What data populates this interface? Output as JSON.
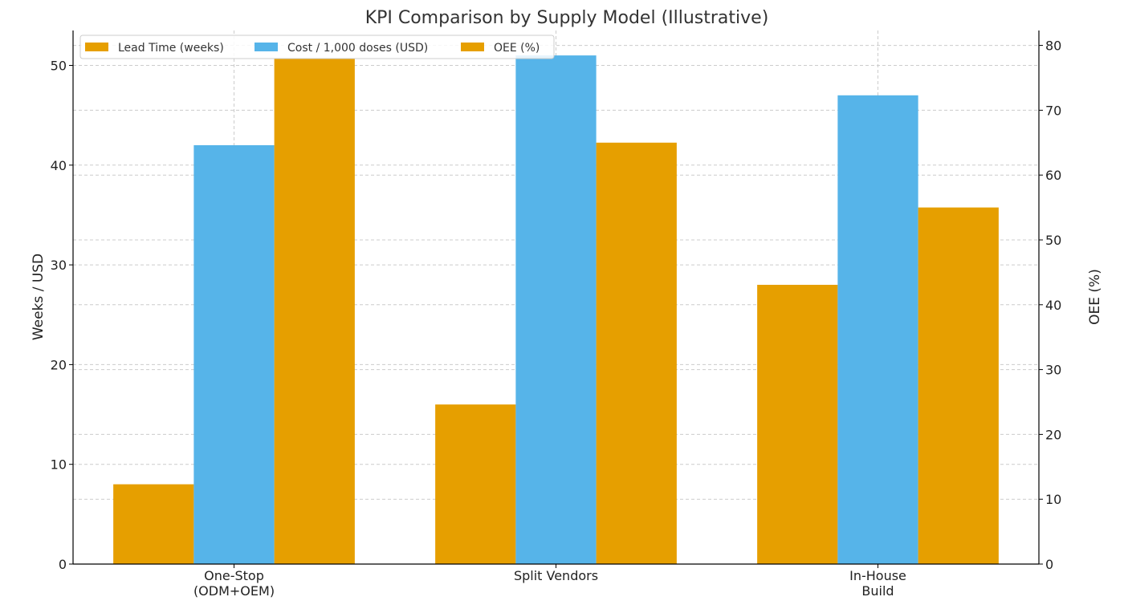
{
  "chart_data": {
    "type": "bar",
    "title": "KPI Comparison by Supply Model (Illustrative)",
    "categories": [
      [
        "One-Stop",
        "(ODM+OEM)"
      ],
      [
        "Split Vendors"
      ],
      [
        "In-House",
        "Build"
      ]
    ],
    "ylabel": "Weeks / USD",
    "y2label": "OEE (%)",
    "ylim": [
      0,
      53.5
    ],
    "y2lim": [
      0,
      82.3
    ],
    "yticks": [
      0,
      10,
      20,
      30,
      40,
      50
    ],
    "y2ticks": [
      0,
      10,
      20,
      30,
      40,
      50,
      60,
      70,
      80
    ],
    "grid": true,
    "legend_position": "top-left",
    "series": [
      {
        "name": "Lead Time (weeks)",
        "axis": "left",
        "color": "#E69F00",
        "values": [
          8,
          16,
          28
        ]
      },
      {
        "name": "Cost / 1,000 doses (USD)",
        "axis": "left",
        "color": "#56B4E9",
        "values": [
          42,
          51,
          47
        ]
      },
      {
        "name": "OEE (%)",
        "axis": "right",
        "color": "#E69F00",
        "values": [
          78,
          65,
          55
        ]
      }
    ]
  }
}
